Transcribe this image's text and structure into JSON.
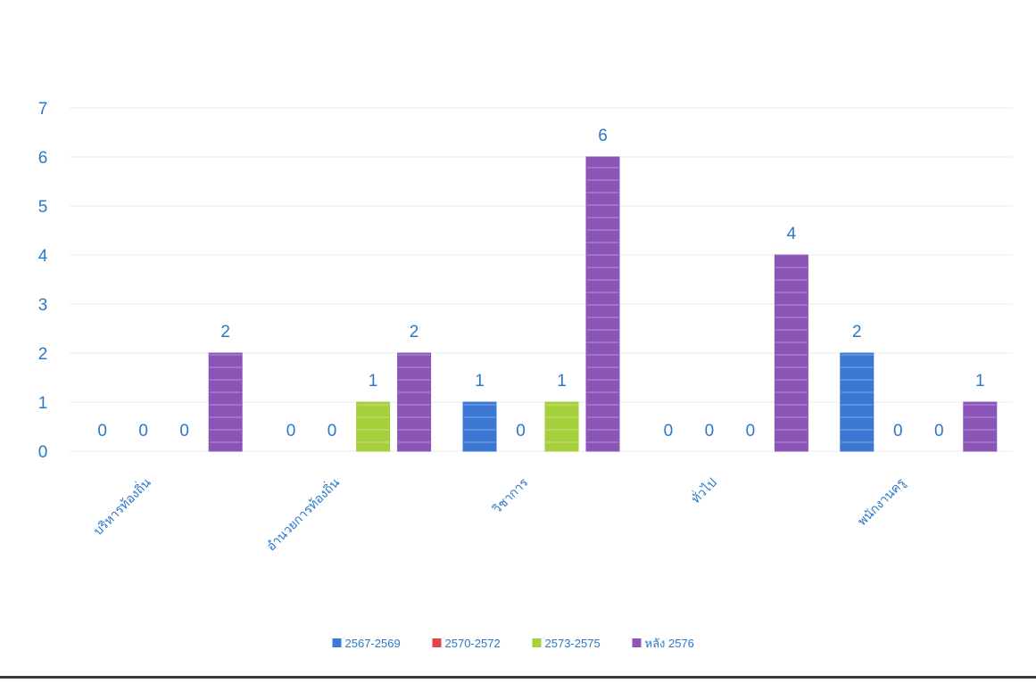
{
  "chart_data": {
    "type": "bar",
    "categories": [
      "บริหารท้องถิ่น",
      "อำนวยการท้องถิ่น",
      "วิชาการ",
      "ทั่วไป",
      "พนักงานครู"
    ],
    "series": [
      {
        "name": "2567-2569",
        "color": "#3a78d4",
        "values": [
          0,
          0,
          1,
          0,
          2
        ]
      },
      {
        "name": "2570-2572",
        "color": "#e0474c",
        "values": [
          0,
          0,
          0,
          0,
          0
        ]
      },
      {
        "name": "2573-2575",
        "color": "#a6cf3c",
        "values": [
          0,
          1,
          1,
          0,
          0
        ]
      },
      {
        "name": "หลัง 2576",
        "color": "#8a55b6",
        "values": [
          2,
          2,
          6,
          4,
          1
        ]
      }
    ],
    "ylim": [
      0,
      7
    ],
    "yticks": [
      0,
      1,
      2,
      3,
      4,
      5,
      6,
      7
    ],
    "grid": true,
    "legend_position": "bottom",
    "label_color": "#2a78c8"
  }
}
